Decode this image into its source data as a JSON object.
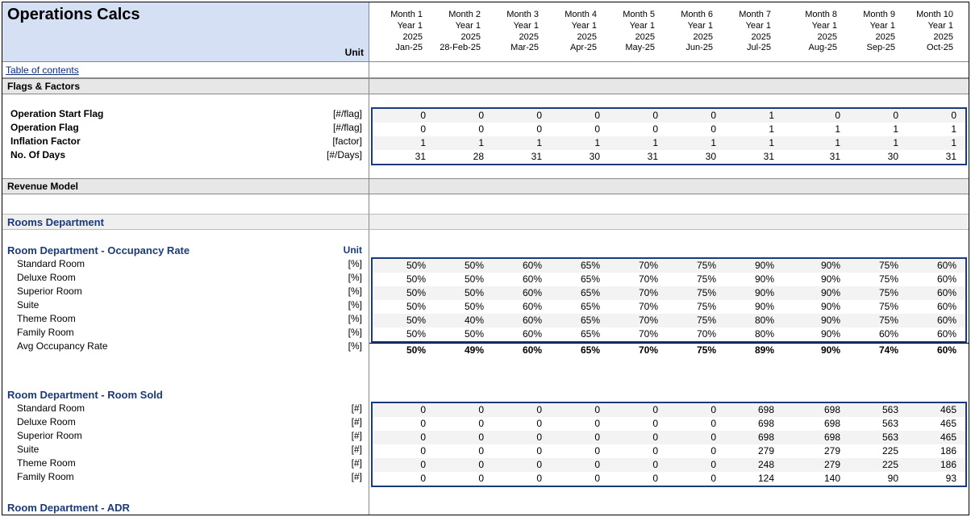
{
  "header": {
    "title": "Operations Calcs",
    "unit_label": "Unit",
    "months": [
      {
        "m": "Month 1",
        "y": "Year 1",
        "yy": "2025",
        "d": "Jan-25"
      },
      {
        "m": "Month 2",
        "y": "Year 1",
        "yy": "2025",
        "d": "28-Feb-25"
      },
      {
        "m": "Month 3",
        "y": "Year 1",
        "yy": "2025",
        "d": "Mar-25"
      },
      {
        "m": "Month 4",
        "y": "Year 1",
        "yy": "2025",
        "d": "Apr-25"
      },
      {
        "m": "Month 5",
        "y": "Year 1",
        "yy": "2025",
        "d": "May-25"
      },
      {
        "m": "Month 6",
        "y": "Year 1",
        "yy": "2025",
        "d": "Jun-25"
      },
      {
        "m": "Month 7",
        "y": "Year 1",
        "yy": "2025",
        "d": "Jul-25"
      },
      {
        "m": "Month 8",
        "y": "Year 1",
        "yy": "2025",
        "d": "Aug-25"
      },
      {
        "m": "Month 9",
        "y": "Year 1",
        "yy": "2025",
        "d": "Sep-25"
      },
      {
        "m": "Month 10",
        "y": "Year 1",
        "yy": "2025",
        "d": "Oct-25"
      }
    ]
  },
  "toc": {
    "label": "Table of contents"
  },
  "sections": {
    "flags": {
      "title": "Flags & Factors",
      "rows": [
        {
          "label": "Operation Start Flag",
          "unit": "[#/flag]",
          "vals": [
            "0",
            "0",
            "0",
            "0",
            "0",
            "0",
            "1",
            "0",
            "0",
            "0"
          ],
          "bold": true
        },
        {
          "label": "Operation Flag",
          "unit": "[#/flag]",
          "vals": [
            "0",
            "0",
            "0",
            "0",
            "0",
            "0",
            "1",
            "1",
            "1",
            "1"
          ],
          "bold": true
        },
        {
          "label": "Inflation Factor",
          "unit": "[factor]",
          "vals": [
            "1",
            "1",
            "1",
            "1",
            "1",
            "1",
            "1",
            "1",
            "1",
            "1"
          ],
          "bold": true
        },
        {
          "label": "No. Of Days",
          "unit": "[#/Days]",
          "vals": [
            "31",
            "28",
            "31",
            "30",
            "31",
            "30",
            "31",
            "31",
            "30",
            "31"
          ],
          "bold": true
        }
      ]
    },
    "revenue": {
      "title": "Revenue Model"
    },
    "rooms_dept": {
      "title": "Rooms Department"
    },
    "occ": {
      "title": "Room Department - Occupancy Rate",
      "unit_label": "Unit",
      "rows": [
        {
          "label": "Standard Room",
          "unit": "[%]",
          "vals": [
            "50%",
            "50%",
            "60%",
            "65%",
            "70%",
            "75%",
            "90%",
            "90%",
            "75%",
            "60%"
          ]
        },
        {
          "label": "Deluxe Room",
          "unit": "[%]",
          "vals": [
            "50%",
            "50%",
            "60%",
            "65%",
            "70%",
            "75%",
            "90%",
            "90%",
            "75%",
            "60%"
          ]
        },
        {
          "label": "Superior Room",
          "unit": "[%]",
          "vals": [
            "50%",
            "50%",
            "60%",
            "65%",
            "70%",
            "75%",
            "90%",
            "90%",
            "75%",
            "60%"
          ]
        },
        {
          "label": "Suite",
          "unit": "[%]",
          "vals": [
            "50%",
            "50%",
            "60%",
            "65%",
            "70%",
            "75%",
            "90%",
            "90%",
            "75%",
            "60%"
          ]
        },
        {
          "label": "Theme Room",
          "unit": "[%]",
          "vals": [
            "50%",
            "40%",
            "60%",
            "65%",
            "70%",
            "75%",
            "80%",
            "90%",
            "75%",
            "60%"
          ]
        },
        {
          "label": "Family Room",
          "unit": "[%]",
          "vals": [
            "50%",
            "50%",
            "60%",
            "65%",
            "70%",
            "70%",
            "80%",
            "90%",
            "60%",
            "60%"
          ]
        }
      ],
      "avg": {
        "label": "Avg Occupancy Rate",
        "unit": "[%]",
        "vals": [
          "50%",
          "49%",
          "60%",
          "65%",
          "70%",
          "75%",
          "89%",
          "90%",
          "74%",
          "60%"
        ]
      }
    },
    "sold": {
      "title": "Room Department - Room Sold",
      "rows": [
        {
          "label": "Standard Room",
          "unit": "[#]",
          "vals": [
            "0",
            "0",
            "0",
            "0",
            "0",
            "0",
            "698",
            "698",
            "563",
            "465"
          ]
        },
        {
          "label": "Deluxe Room",
          "unit": "[#]",
          "vals": [
            "0",
            "0",
            "0",
            "0",
            "0",
            "0",
            "698",
            "698",
            "563",
            "465"
          ]
        },
        {
          "label": "Superior Room",
          "unit": "[#]",
          "vals": [
            "0",
            "0",
            "0",
            "0",
            "0",
            "0",
            "698",
            "698",
            "563",
            "465"
          ]
        },
        {
          "label": "Suite",
          "unit": "[#]",
          "vals": [
            "0",
            "0",
            "0",
            "0",
            "0",
            "0",
            "279",
            "279",
            "225",
            "186"
          ]
        },
        {
          "label": "Theme Room",
          "unit": "[#]",
          "vals": [
            "0",
            "0",
            "0",
            "0",
            "0",
            "0",
            "248",
            "279",
            "225",
            "186"
          ]
        },
        {
          "label": "Family Room",
          "unit": "[#]",
          "vals": [
            "0",
            "0",
            "0",
            "0",
            "0",
            "0",
            "124",
            "140",
            "90",
            "93"
          ]
        }
      ]
    },
    "adr": {
      "title": "Room Department - ADR"
    }
  }
}
